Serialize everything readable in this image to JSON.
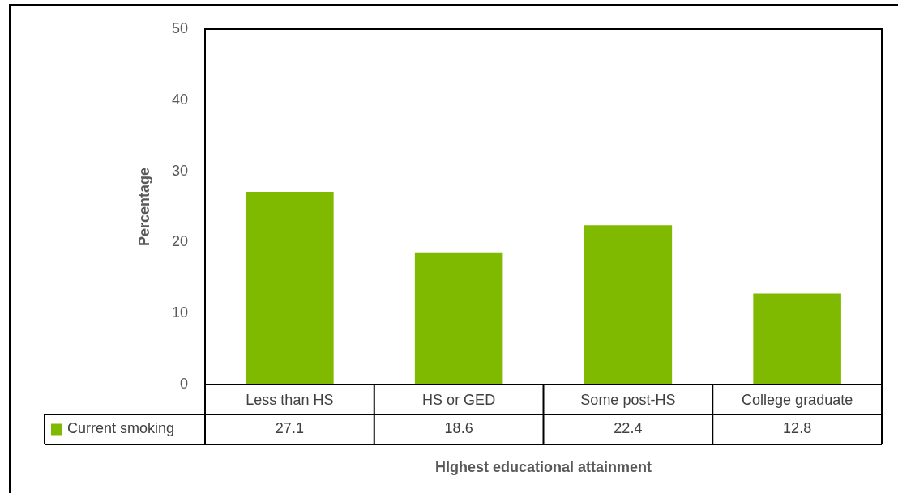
{
  "chart_data": {
    "type": "bar",
    "categories": [
      "Less than HS",
      "HS or GED",
      "Some post-HS",
      "College graduate"
    ],
    "series": [
      {
        "name": "Current smoking",
        "color": "#7fba00",
        "values": [
          27.1,
          18.6,
          22.4,
          12.8
        ]
      }
    ],
    "xlabel": "HIghest educational attainment",
    "ylabel": "Percentage",
    "ylim": [
      0,
      50
    ],
    "yticks": [
      0,
      10,
      20,
      30,
      40,
      50
    ],
    "legend": "bottom",
    "data_labels": true
  }
}
